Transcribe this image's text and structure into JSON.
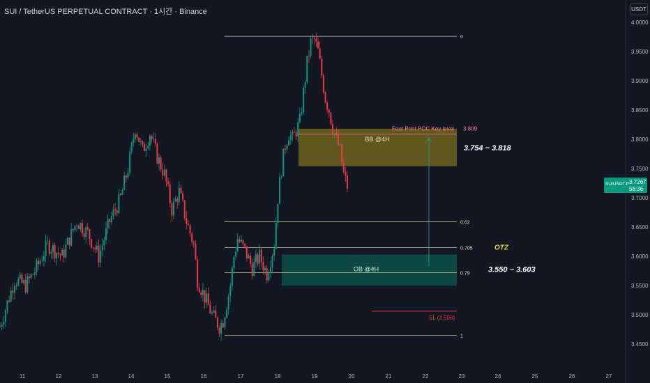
{
  "header": {
    "title": "SUI / TetherUS PERPETUAL CONTRACT · 1시간 · Binance"
  },
  "toolbar": {
    "currency_button": "USDT"
  },
  "last_price": {
    "symbol": "SUIUSDT.P",
    "price": "3.7267",
    "countdown": "58:36",
    "color": "#089981"
  },
  "colors": {
    "up": "#089981",
    "down": "#f23645",
    "fib": "#d8d39c",
    "bb_zone": "#7a6e1c",
    "ob_zone": "#0e5a4e",
    "poc": "#f77c9a"
  },
  "chart_data": {
    "type": "candlestick",
    "y_axis": {
      "min": 3.45,
      "max": 4.0,
      "ticks": [
        "4.0000",
        "3.9500",
        "3.9000",
        "3.8500",
        "3.8000",
        "3.7500",
        "3.7000",
        "3.6500",
        "3.6000",
        "3.5500",
        "3.5000",
        "3.4500"
      ]
    },
    "x_axis": {
      "ticks": [
        "11",
        "12",
        "13",
        "14",
        "15",
        "16",
        "17",
        "18",
        "19",
        "20",
        "21",
        "22",
        "23",
        "24",
        "25",
        "26",
        "27"
      ]
    },
    "fib_levels": [
      {
        "label": "0",
        "price": 3.976
      },
      {
        "label": "0.62",
        "price": 3.659
      },
      {
        "label": "0.705",
        "price": 3.615
      },
      {
        "label": "0.79",
        "price": 3.572
      },
      {
        "label": "1",
        "price": 3.465
      }
    ],
    "zones": [
      {
        "name": "BB @4H",
        "range": "3.754 ~ 3.818",
        "low": 3.754,
        "high": 3.818
      },
      {
        "name": "OB @4H",
        "range": "3.550 ~ 3.603",
        "low": 3.55,
        "high": 3.603
      }
    ],
    "poc": {
      "label": "Foot Print POC Key level",
      "value": "3.809",
      "price": 3.809
    },
    "otz_label": "OTZ",
    "stop_loss": {
      "label": "SL (3.506)",
      "price": 3.506
    },
    "path_price": [
      [
        0,
        3.48
      ],
      [
        4,
        3.56
      ],
      [
        7,
        3.55
      ],
      [
        10,
        3.58
      ],
      [
        13,
        3.62
      ],
      [
        17,
        3.6
      ],
      [
        21,
        3.66
      ],
      [
        24,
        3.64
      ],
      [
        27,
        3.6
      ],
      [
        30,
        3.66
      ],
      [
        33,
        3.7
      ],
      [
        35,
        3.75
      ],
      [
        37,
        3.82
      ],
      [
        39,
        3.78
      ],
      [
        41,
        3.81
      ],
      [
        43,
        3.77
      ],
      [
        45,
        3.74
      ],
      [
        47,
        3.68
      ],
      [
        49,
        3.71
      ],
      [
        51,
        3.66
      ],
      [
        53,
        3.62
      ],
      [
        54,
        3.56
      ],
      [
        56,
        3.53
      ],
      [
        58,
        3.5
      ],
      [
        60,
        3.48
      ],
      [
        61,
        3.49
      ],
      [
        62,
        3.52
      ],
      [
        63,
        3.55
      ],
      [
        64,
        3.6
      ],
      [
        65,
        3.63
      ],
      [
        67,
        3.61
      ],
      [
        69,
        3.58
      ],
      [
        71,
        3.6
      ],
      [
        73,
        3.57
      ],
      [
        75,
        3.62
      ],
      [
        76,
        3.7
      ],
      [
        77,
        3.75
      ],
      [
        78,
        3.79
      ],
      [
        79,
        3.81
      ],
      [
        80,
        3.8
      ],
      [
        82,
        3.83
      ],
      [
        83,
        3.88
      ],
      [
        84,
        3.93
      ],
      [
        85,
        3.965
      ],
      [
        86,
        3.97
      ],
      [
        87,
        3.95
      ],
      [
        88,
        3.91
      ],
      [
        89,
        3.87
      ],
      [
        90,
        3.85
      ],
      [
        91,
        3.82
      ],
      [
        92,
        3.8
      ],
      [
        93,
        3.78
      ],
      [
        94,
        3.74
      ],
      [
        95,
        3.72
      ]
    ]
  }
}
